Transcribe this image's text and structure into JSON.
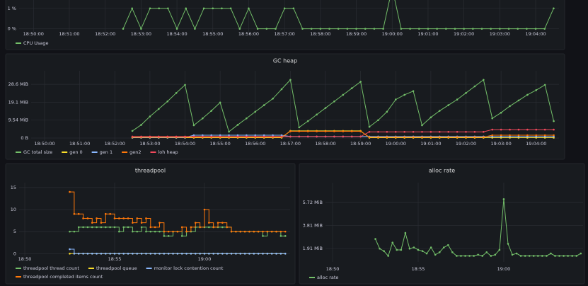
{
  "chart_data": [
    {
      "type": "line",
      "xlim": [
        "18:49:36",
        "19:04:39"
      ],
      "ylim": [
        -0.15,
        1.41
      ],
      "yticks": [
        {
          "value": 1,
          "label": "1 %"
        },
        {
          "value": 0,
          "label": "0 %"
        }
      ],
      "xticks": [
        "18:50:00",
        "18:51:00",
        "18:52:00",
        "18:53:00",
        "18:54:00",
        "18:55:00",
        "18:56:00",
        "18:57:00",
        "18:58:00",
        "18:59:00",
        "19:00:00",
        "19:01:00",
        "19:02:00",
        "19:03:00",
        "19:04:00"
      ],
      "grid": true,
      "step": false,
      "x": [
        "18:52:30",
        "18:52:45",
        "18:53:00",
        "18:53:15",
        "18:53:30",
        "18:53:45",
        "18:54:00",
        "18:54:15",
        "18:54:30",
        "18:54:45",
        "18:55:00",
        "18:55:15",
        "18:55:30",
        "18:55:45",
        "18:56:00",
        "18:56:15",
        "18:56:30",
        "18:56:45",
        "18:57:00",
        "18:57:15",
        "18:57:30",
        "18:57:45",
        "18:58:00",
        "18:58:15",
        "18:58:30",
        "18:58:45",
        "18:59:00",
        "18:59:15",
        "18:59:30",
        "18:59:45",
        "19:00:00",
        "19:00:15",
        "19:00:30",
        "19:00:45",
        "19:01:00",
        "19:01:15",
        "19:01:30",
        "19:01:45",
        "19:02:00",
        "19:02:15",
        "19:02:30",
        "19:02:45",
        "19:03:00",
        "19:03:15",
        "19:03:30",
        "19:03:45",
        "19:04:00",
        "19:04:15",
        "19:04:30"
      ],
      "series": [
        {
          "name": "CPU Usage",
          "color": "#73bf69",
          "values": [
            0,
            1,
            0,
            1,
            1,
            1,
            0,
            1,
            0,
            1,
            1,
            1,
            1,
            0,
            1,
            0,
            0,
            0,
            1,
            1,
            0,
            0,
            0,
            0,
            0,
            0,
            0,
            0,
            0,
            0,
            2,
            0,
            0,
            0,
            0,
            0,
            0,
            0,
            0,
            0,
            0,
            0,
            0,
            0,
            0,
            0,
            0,
            0,
            1
          ]
        }
      ]
    },
    {
      "type": "line",
      "title": "GC heap",
      "xlim": [
        "18:49:37",
        "19:04:39"
      ],
      "ylim": [
        -1.5,
        35.8
      ],
      "yticks": [
        {
          "value": 28.6,
          "label": "28.6 MiB"
        },
        {
          "value": 19.1,
          "label": "19.1 MiB"
        },
        {
          "value": 9.54,
          "label": "9.54 MiB"
        },
        {
          "value": 0,
          "label": "0 B"
        }
      ],
      "xticks": [
        "18:50:00",
        "18:51:00",
        "18:52:00",
        "18:53:00",
        "18:54:00",
        "18:55:00",
        "18:56:00",
        "18:57:00",
        "18:58:00",
        "18:59:00",
        "19:00:00",
        "19:01:00",
        "19:02:00",
        "19:03:00",
        "19:04:00"
      ],
      "grid": true,
      "step": false,
      "x": [
        "18:52:30",
        "18:52:45",
        "18:53:00",
        "18:53:15",
        "18:53:30",
        "18:53:45",
        "18:54:00",
        "18:54:15",
        "18:54:30",
        "18:54:45",
        "18:55:00",
        "18:55:15",
        "18:55:30",
        "18:55:45",
        "18:56:00",
        "18:56:15",
        "18:56:30",
        "18:56:45",
        "18:57:00",
        "18:57:15",
        "18:57:30",
        "18:57:45",
        "18:58:00",
        "18:58:15",
        "18:58:30",
        "18:58:45",
        "18:59:00",
        "18:59:15",
        "18:59:30",
        "18:59:45",
        "19:00:00",
        "19:00:15",
        "19:00:30",
        "19:00:45",
        "19:01:00",
        "19:01:15",
        "19:01:30",
        "19:01:45",
        "19:02:00",
        "19:02:15",
        "19:02:30",
        "19:02:45",
        "19:03:00",
        "19:03:15",
        "19:03:30",
        "19:03:45",
        "19:04:00",
        "19:04:15",
        "19:04:30"
      ],
      "series": [
        {
          "name": "GC total size",
          "color": "#73bf69",
          "values": [
            3.8,
            7,
            11.5,
            15.5,
            19.5,
            24,
            28.3,
            6.8,
            10.5,
            14.5,
            18.9,
            3.4,
            7,
            10.5,
            14,
            17.5,
            21,
            26,
            31,
            5.7,
            9,
            12.5,
            16,
            19.5,
            23,
            26.5,
            30,
            6,
            9.5,
            14,
            20.5,
            23,
            25,
            6.8,
            11,
            14.5,
            17.5,
            20.5,
            24,
            27.5,
            31,
            10.5,
            13.5,
            17,
            20,
            23,
            25.5,
            28.3,
            9
          ]
        },
        {
          "name": "gen 0",
          "color": "#fade2a",
          "values": [
            0.2,
            0.2,
            0.2,
            0.2,
            0.2,
            0.2,
            0.2,
            0.2,
            0.2,
            0.2,
            0.2,
            0.2,
            0.2,
            0.2,
            0.2,
            0.2,
            0.2,
            0.2,
            3.8,
            3.8,
            3.8,
            3.8,
            3.8,
            3.8,
            3.8,
            3.8,
            3.8,
            0.2,
            0.2,
            0.2,
            0.2,
            0.2,
            0.2,
            0.2,
            0.2,
            0.2,
            0.2,
            0.2,
            0.2,
            0.2,
            0.2,
            0.2,
            0.2,
            0.2,
            0.2,
            0.2,
            0.2,
            0.2,
            0.2
          ]
        },
        {
          "name": "gen 1",
          "color": "#8ab8ff",
          "values": [
            0.3,
            0.3,
            0.3,
            0.3,
            0.3,
            0.3,
            0.3,
            1.5,
            1.5,
            1.5,
            1.5,
            1.5,
            1.5,
            1.5,
            1.5,
            1.5,
            1.5,
            1.5,
            0.8,
            0.8,
            0.8,
            0.8,
            0.8,
            0.8,
            0.8,
            0.8,
            0.8,
            0.8,
            0.8,
            0.8,
            0.8,
            0.8,
            0.8,
            0.8,
            0.8,
            0.8,
            0.8,
            0.8,
            0.8,
            0.8,
            0.8,
            0.8,
            0.8,
            0.8,
            0.8,
            0.8,
            0.8,
            0.8,
            0.8
          ]
        },
        {
          "name": "gen2",
          "color": "#ff780a",
          "values": [
            0.5,
            0.5,
            0.5,
            0.5,
            0.5,
            0.5,
            0.5,
            0.5,
            0.5,
            0.5,
            0.5,
            0.5,
            0.5,
            0.5,
            0.5,
            0.5,
            0.5,
            0.5,
            3.6,
            3.6,
            3.6,
            3.6,
            3.6,
            3.6,
            3.6,
            3.6,
            3.6,
            0.5,
            0.5,
            0.5,
            0.5,
            0.5,
            0.5,
            0.5,
            0.5,
            0.5,
            0.5,
            0.5,
            0.5,
            0.5,
            0.5,
            1.5,
            1.5,
            1.5,
            1.5,
            1.5,
            1.5,
            1.5,
            1.5
          ]
        },
        {
          "name": "loh heap",
          "color": "#f2495c",
          "values": [
            0.8,
            0.8,
            0.8,
            0.8,
            0.8,
            0.8,
            0.8,
            0.8,
            0.8,
            0.8,
            0.8,
            0.8,
            0.8,
            0.8,
            0.8,
            0.8,
            0.8,
            0.8,
            0.8,
            0.8,
            0.8,
            0.8,
            0.8,
            0.8,
            0.8,
            0.8,
            0.8,
            3.3,
            3.3,
            3.3,
            3.3,
            3.3,
            3.3,
            3.3,
            3.3,
            3.3,
            3.3,
            3.3,
            3.3,
            3.3,
            3.3,
            4.5,
            4.5,
            4.5,
            4.5,
            4.5,
            4.5,
            4.5,
            4.5
          ]
        }
      ]
    },
    {
      "type": "line",
      "title": "threadpool",
      "xlim": [
        "18:49:41",
        "19:04:46"
      ],
      "ylim": [
        -0.6,
        16.1
      ],
      "yticks": [
        15,
        10,
        5,
        0
      ],
      "xticks": [
        "18:50",
        "18:55",
        "19:00"
      ],
      "grid": true,
      "step": true,
      "x": [
        "18:52:30",
        "18:52:45",
        "18:53:00",
        "18:53:15",
        "18:53:30",
        "18:53:45",
        "18:54:00",
        "18:54:15",
        "18:54:30",
        "18:54:45",
        "18:55:00",
        "18:55:15",
        "18:55:30",
        "18:55:45",
        "18:56:00",
        "18:56:15",
        "18:56:30",
        "18:56:45",
        "18:57:00",
        "18:57:15",
        "18:57:30",
        "18:57:45",
        "18:58:00",
        "18:58:15",
        "18:58:30",
        "18:58:45",
        "18:59:00",
        "18:59:15",
        "18:59:30",
        "18:59:45",
        "19:00:00",
        "19:00:15",
        "19:00:30",
        "19:00:45",
        "19:01:00",
        "19:01:15",
        "19:01:30",
        "19:01:45",
        "19:02:00",
        "19:02:15",
        "19:02:30",
        "19:02:45",
        "19:03:00",
        "19:03:15",
        "19:03:30",
        "19:03:45",
        "19:04:00",
        "19:04:15",
        "19:04:30"
      ],
      "series": [
        {
          "name": "threadpool thread count",
          "color": "#73bf69",
          "values": [
            5,
            5,
            6,
            6,
            6,
            6,
            6,
            6,
            6,
            6,
            6,
            5,
            6,
            6,
            5,
            5,
            6,
            5,
            5,
            5,
            5,
            4,
            4,
            5,
            5,
            4,
            5,
            5,
            6,
            6,
            6,
            6,
            6,
            6,
            6,
            6,
            5,
            5,
            5,
            5,
            5,
            5,
            5,
            4,
            5,
            5,
            5,
            4,
            4
          ]
        },
        {
          "name": "threadpool queue",
          "color": "#fade2a",
          "values": [
            0,
            0,
            0,
            0,
            0,
            0,
            0,
            0,
            0,
            0,
            0,
            0,
            0,
            0,
            0,
            0,
            0,
            0,
            0,
            0,
            0,
            0,
            0,
            0,
            0,
            0,
            0,
            0,
            0,
            0,
            0,
            0,
            0,
            0,
            0,
            0,
            0,
            0,
            0,
            0,
            0,
            0,
            0,
            0,
            0,
            0,
            0,
            0,
            0
          ]
        },
        {
          "name": "monitor lock contention count",
          "color": "#8ab8ff",
          "values": [
            1,
            0,
            0,
            0,
            0,
            0,
            0,
            0,
            0,
            0,
            0,
            0,
            0,
            0,
            0,
            0,
            0,
            0,
            0,
            0,
            0,
            0,
            0,
            0,
            0,
            0,
            0,
            0,
            0,
            0,
            0,
            0,
            0,
            0,
            0,
            0,
            0,
            0,
            0,
            0,
            0,
            0,
            0,
            0,
            0,
            0,
            0,
            0,
            0
          ]
        },
        {
          "name": "threadpool completed items count",
          "color": "#ff780a",
          "values": [
            14,
            9,
            9,
            8,
            8,
            7,
            8,
            7,
            9,
            9,
            8,
            8,
            8,
            8,
            7,
            8,
            7,
            8,
            6,
            6,
            7,
            5,
            5,
            5,
            5,
            6,
            5,
            6,
            7,
            6,
            10,
            7,
            6,
            7,
            7,
            6,
            5,
            5,
            5,
            5,
            5,
            5,
            5,
            5,
            5,
            5,
            5,
            5,
            5
          ]
        }
      ]
    },
    {
      "type": "line",
      "title": "alloc rate",
      "xlim": [
        "18:49:35",
        "19:04:38"
      ],
      "ylim": [
        0.8,
        7.37
      ],
      "yticks": [
        {
          "value": 5.72,
          "label": "5.72 MiB"
        },
        {
          "value": 3.81,
          "label": "3.81 MiB"
        },
        {
          "value": 1.91,
          "label": "1.91 MiB"
        }
      ],
      "xticks": [
        "18:50",
        "18:55",
        "19:00"
      ],
      "grid": true,
      "step": false,
      "x": [
        "18:52:30",
        "18:52:45",
        "18:53:00",
        "18:53:15",
        "18:53:30",
        "18:53:45",
        "18:54:00",
        "18:54:15",
        "18:54:30",
        "18:54:45",
        "18:55:00",
        "18:55:15",
        "18:55:30",
        "18:55:45",
        "18:56:00",
        "18:56:15",
        "18:56:30",
        "18:56:45",
        "18:57:00",
        "18:57:15",
        "18:57:30",
        "18:57:45",
        "18:58:00",
        "18:58:15",
        "18:58:30",
        "18:58:45",
        "18:59:00",
        "18:59:15",
        "18:59:30",
        "18:59:45",
        "19:00:00",
        "19:00:15",
        "19:00:30",
        "19:00:45",
        "19:01:00",
        "19:01:15",
        "19:01:30",
        "19:01:45",
        "19:02:00",
        "19:02:15",
        "19:02:30",
        "19:02:45",
        "19:03:00",
        "19:03:15",
        "19:03:30",
        "19:03:45",
        "19:04:00",
        "19:04:15",
        "19:04:30"
      ],
      "series": [
        {
          "name": "alloc rate",
          "color": "#73bf69",
          "values": [
            2.7,
            1.9,
            1.7,
            1.3,
            2.4,
            1.8,
            1.8,
            3.2,
            1.9,
            2.0,
            1.8,
            1.7,
            1.5,
            2.0,
            1.4,
            1.6,
            2.0,
            2.2,
            1.6,
            1.3,
            1.3,
            1.3,
            1.3,
            1.3,
            1.4,
            1.3,
            1.6,
            1.3,
            1.4,
            1.8,
            6.0,
            2.3,
            1.4,
            1.5,
            1.3,
            1.3,
            1.3,
            1.3,
            1.3,
            1.3,
            1.3,
            1.5,
            1.3,
            1.3,
            1.3,
            1.3,
            1.3,
            1.3,
            1.5
          ]
        }
      ]
    }
  ]
}
